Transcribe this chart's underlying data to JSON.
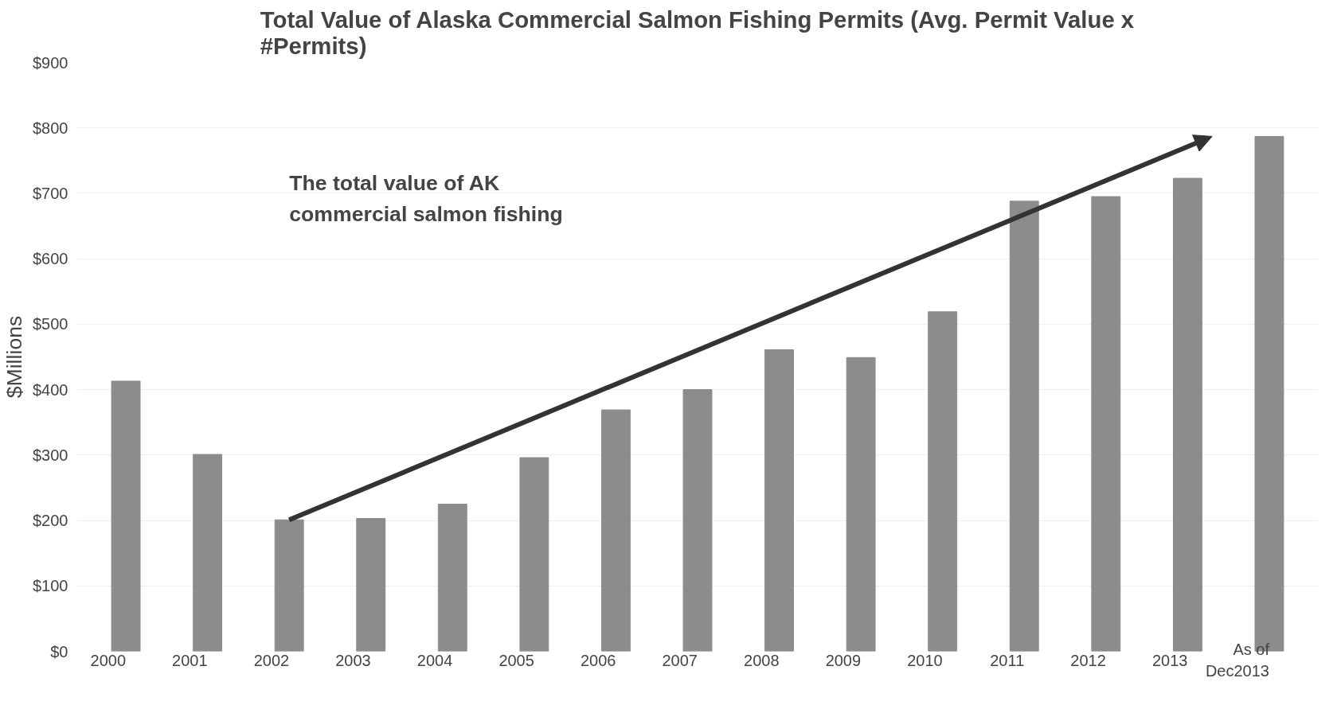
{
  "chart_data": {
    "type": "bar",
    "title": "Total Value of Alaska Commercial Salmon Fishing Permits (Avg. Permit Value x #Permits)",
    "ylabel": "$Millions",
    "categories": [
      "2000",
      "2001",
      "2002",
      "2003",
      "2004",
      "2005",
      "2006",
      "2007",
      "2008",
      "2009",
      "2010",
      "2011",
      "2012",
      "2013",
      "As of Dec2013"
    ],
    "values": [
      413,
      301,
      201,
      203,
      225,
      296,
      369,
      400,
      461,
      449,
      519,
      688,
      695,
      723,
      787
    ],
    "color": "#8c8c8c",
    "ylim": [
      0,
      900
    ],
    "yticks": [
      {
        "value": 0,
        "label": "$0"
      },
      {
        "value": 100,
        "label": "$100"
      },
      {
        "value": 200,
        "label": "$200"
      },
      {
        "value": 300,
        "label": "$300"
      },
      {
        "value": 400,
        "label": "$400"
      },
      {
        "value": 500,
        "label": "$500"
      },
      {
        "value": 600,
        "label": "$600"
      },
      {
        "value": 700,
        "label": "$700"
      },
      {
        "value": 800,
        "label": "$800"
      },
      {
        "value": 900,
        "label": "$900"
      }
    ],
    "grid": "y",
    "annotations": [
      "The total value of AK commercial salmon fishing"
    ]
  }
}
